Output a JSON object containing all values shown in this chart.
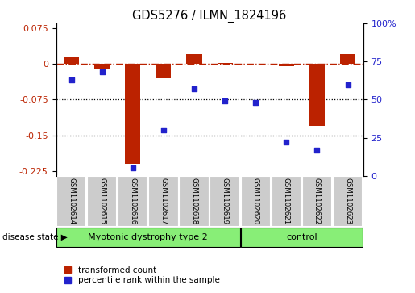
{
  "title": "GDS5276 / ILMN_1824196",
  "samples": [
    "GSM1102614",
    "GSM1102615",
    "GSM1102616",
    "GSM1102617",
    "GSM1102618",
    "GSM1102619",
    "GSM1102620",
    "GSM1102621",
    "GSM1102622",
    "GSM1102623"
  ],
  "red_values": [
    0.015,
    -0.01,
    -0.21,
    -0.03,
    0.02,
    0.002,
    0.001,
    -0.005,
    -0.13,
    0.02
  ],
  "blue_values": [
    63,
    68,
    5,
    30,
    57,
    49,
    48,
    22,
    17,
    60
  ],
  "ylim_left": [
    -0.235,
    0.085
  ],
  "ylim_right": [
    0,
    100
  ],
  "yticks_left": [
    0.075,
    0,
    -0.075,
    -0.15,
    -0.225
  ],
  "yticks_right": [
    100,
    75,
    50,
    25,
    0
  ],
  "hlines": [
    -0.075,
    -0.15
  ],
  "red_color": "#bb2200",
  "blue_color": "#2222cc",
  "dashed_line_color": "#bb2200",
  "group1_label": "Myotonic dystrophy type 2",
  "group2_label": "control",
  "group1_count": 6,
  "group2_count": 4,
  "disease_label": "disease state",
  "legend1": "transformed count",
  "legend2": "percentile rank within the sample",
  "group_bar_color": "#88ee77",
  "sample_box_color": "#cccccc",
  "bar_width": 0.5
}
